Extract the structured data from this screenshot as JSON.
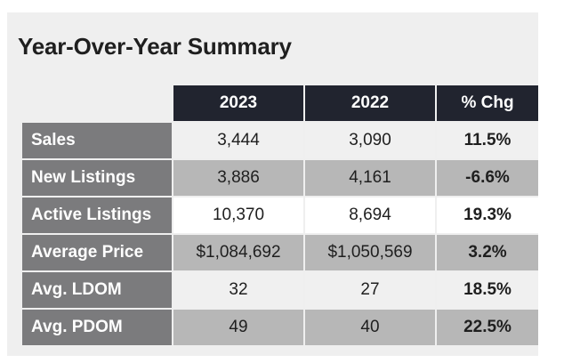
{
  "title": "Year-Over-Year Summary",
  "columns": [
    "2023",
    "2022",
    "% Chg"
  ],
  "rows": [
    {
      "label": "Sales",
      "v2023": "3,444",
      "v2022": "3,090",
      "chg": "11.5%"
    },
    {
      "label": "New Listings",
      "v2023": "3,886",
      "v2022": "4,161",
      "chg": "-6.6%"
    },
    {
      "label": "Active Listings",
      "v2023": "10,370",
      "v2022": "8,694",
      "chg": "19.3%"
    },
    {
      "label": "Average Price",
      "v2023": "$1,084,692",
      "v2022": "$1,050,569",
      "chg": "3.2%"
    },
    {
      "label": "Avg. LDOM",
      "v2023": "32",
      "v2022": "27",
      "chg": "18.5%"
    },
    {
      "label": "Avg. PDOM",
      "v2023": "49",
      "v2022": "40",
      "chg": "22.5%"
    }
  ],
  "colors": {
    "header_bg": "#21242f",
    "row_label_bg": "#7b7b7d",
    "light_cell_bg": "#f0f0f0",
    "dark_cell_bg": "#b7b7b7",
    "panel_bg": "#efefef"
  }
}
